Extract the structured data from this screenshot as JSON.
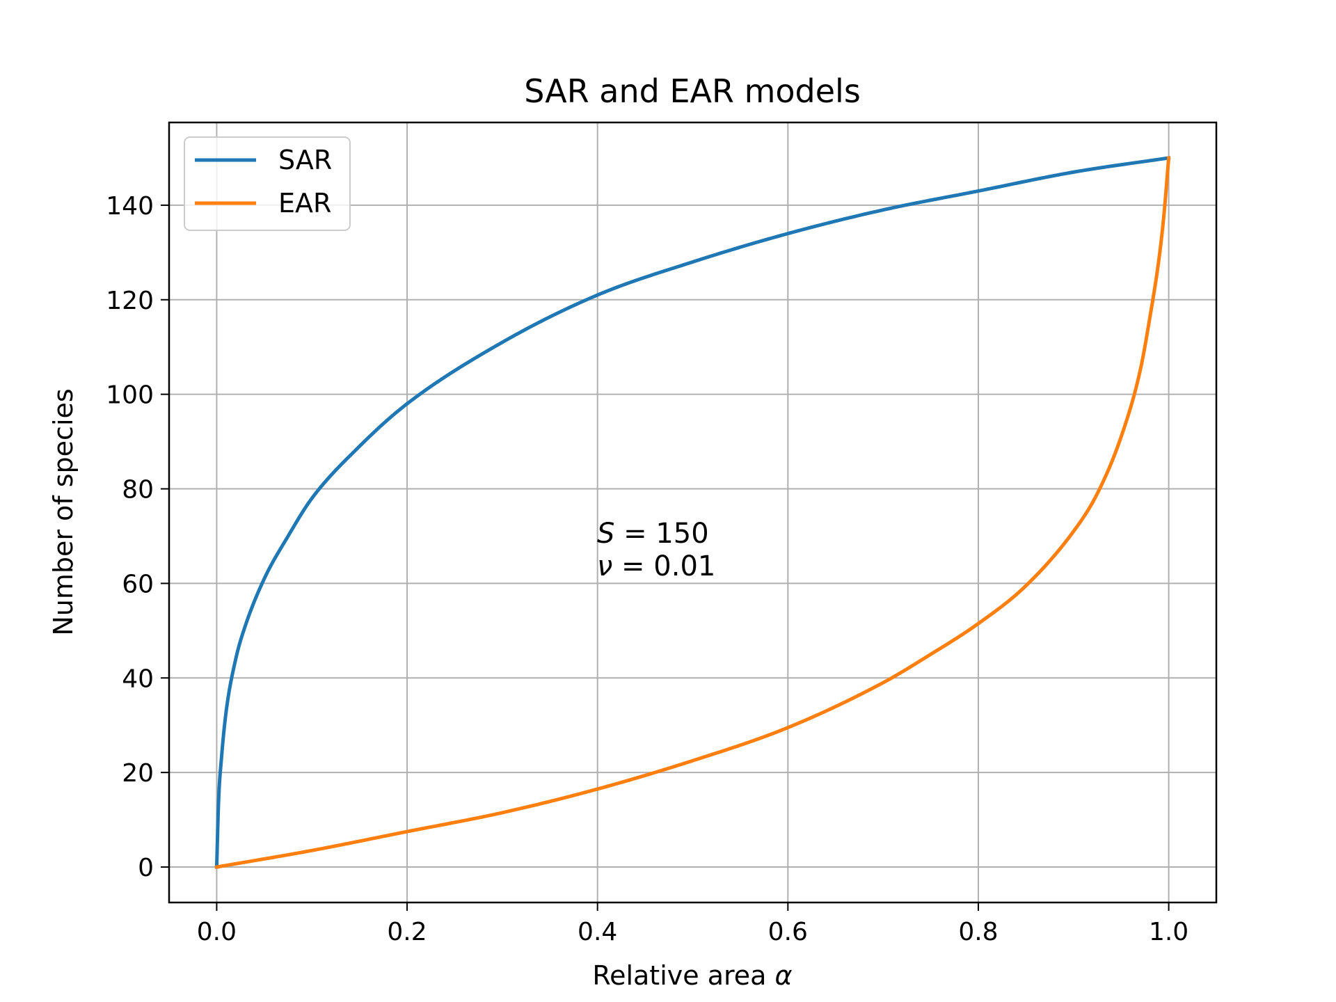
{
  "chart_data": {
    "type": "line",
    "title": "SAR and EAR models",
    "xlabel": "Relative area",
    "xlabel_symbol": "α",
    "ylabel": "Number of species",
    "xlim": [
      -0.05,
      1.05
    ],
    "ylim": [
      -7.5,
      157.5
    ],
    "xticks": [
      0.0,
      0.2,
      0.4,
      0.6,
      0.8,
      1.0
    ],
    "xtick_labels": [
      "0.0",
      "0.2",
      "0.4",
      "0.6",
      "0.8",
      "1.0"
    ],
    "yticks": [
      0,
      20,
      40,
      60,
      80,
      100,
      120,
      140
    ],
    "ytick_labels": [
      "0",
      "20",
      "40",
      "60",
      "80",
      "100",
      "120",
      "140"
    ],
    "grid": true,
    "legend": "top-left",
    "series": [
      {
        "name": "SAR",
        "color": "#1f77b4",
        "x": [
          0.0,
          0.002,
          0.005,
          0.01,
          0.02,
          0.03,
          0.05,
          0.075,
          0.1,
          0.15,
          0.2,
          0.3,
          0.4,
          0.5,
          0.6,
          0.7,
          0.8,
          0.9,
          1.0
        ],
        "y": [
          0,
          14,
          23,
          33,
          44,
          51,
          61,
          70,
          78,
          89,
          98,
          111,
          121,
          128,
          134,
          139,
          143,
          147,
          150
        ]
      },
      {
        "name": "EAR",
        "color": "#ff7f0e",
        "x": [
          0.0,
          0.1,
          0.2,
          0.3,
          0.4,
          0.5,
          0.6,
          0.7,
          0.75,
          0.8,
          0.85,
          0.9,
          0.925,
          0.95,
          0.97,
          0.98,
          0.99,
          0.995,
          1.0
        ],
        "y": [
          0,
          3.5,
          7.5,
          11.5,
          16.5,
          22.5,
          29.5,
          39,
          45,
          51.5,
          59.5,
          71,
          79,
          91,
          105,
          116,
          129,
          138,
          150
        ]
      }
    ],
    "annotations": [
      {
        "symbol": "S",
        "text": " = 150"
      },
      {
        "symbol": "ν",
        "text": " = 0.01"
      }
    ]
  }
}
